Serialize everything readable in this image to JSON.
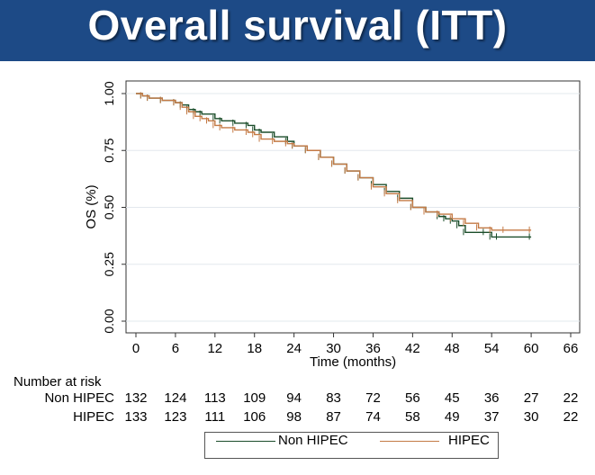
{
  "header": {
    "title": "Overall survival (ITT)",
    "background": "#1d4a86"
  },
  "chart_data": {
    "type": "line",
    "title": "",
    "xlabel": "Time (months)",
    "ylabel": "OS (%)",
    "xlim": [
      0,
      66
    ],
    "ylim": [
      0,
      1
    ],
    "xticks": [
      0,
      6,
      12,
      18,
      24,
      30,
      36,
      42,
      48,
      54,
      60,
      66
    ],
    "yticks": [
      0.0,
      0.25,
      0.5,
      0.75,
      1.0
    ],
    "ytick_labels": [
      "0.00",
      "0.25",
      "0.50",
      "0.75",
      "1.00"
    ],
    "grid": "horizontal",
    "legend_position": "bottom",
    "series": [
      {
        "name": "Non HIPEC",
        "color": "#1b4d2a",
        "step": true,
        "x": [
          0,
          1,
          2,
          4,
          6,
          7,
          8,
          9,
          10,
          12,
          13,
          15,
          17,
          18,
          19,
          21,
          23,
          24,
          26,
          28,
          30,
          32,
          34,
          36,
          38,
          40,
          42,
          44,
          46,
          47,
          48,
          49,
          50,
          53,
          54,
          55,
          60
        ],
        "y": [
          1.0,
          0.99,
          0.98,
          0.97,
          0.96,
          0.95,
          0.93,
          0.92,
          0.91,
          0.89,
          0.88,
          0.87,
          0.86,
          0.84,
          0.83,
          0.81,
          0.79,
          0.77,
          0.75,
          0.72,
          0.69,
          0.66,
          0.63,
          0.6,
          0.57,
          0.54,
          0.5,
          0.48,
          0.46,
          0.45,
          0.44,
          0.42,
          0.39,
          0.39,
          0.37,
          0.37,
          0.37
        ]
      },
      {
        "name": "HIPEC",
        "color": "#c47a45",
        "step": true,
        "x": [
          0,
          1,
          2,
          4,
          6,
          7,
          8,
          9,
          10,
          11,
          12,
          13,
          15,
          17,
          18,
          19,
          21,
          23,
          24,
          26,
          28,
          30,
          32,
          34,
          36,
          38,
          40,
          42,
          44,
          46,
          48,
          50,
          52,
          54,
          56,
          60
        ],
        "y": [
          1.0,
          0.99,
          0.98,
          0.97,
          0.96,
          0.94,
          0.92,
          0.9,
          0.89,
          0.88,
          0.86,
          0.85,
          0.84,
          0.83,
          0.82,
          0.8,
          0.79,
          0.78,
          0.77,
          0.75,
          0.72,
          0.69,
          0.66,
          0.63,
          0.59,
          0.56,
          0.53,
          0.5,
          0.48,
          0.47,
          0.45,
          0.43,
          0.41,
          0.4,
          0.4,
          0.4
        ]
      }
    ]
  },
  "risk_table": {
    "title": "Number at risk",
    "times": [
      0,
      6,
      12,
      18,
      24,
      30,
      36,
      42,
      48,
      54,
      60,
      66
    ],
    "rows": [
      {
        "label": "Non HIPEC",
        "values": [
          "132",
          "124",
          "113",
          "109",
          "94",
          "83",
          "72",
          "56",
          "45",
          "36",
          "27",
          "22"
        ]
      },
      {
        "label": "HIPEC",
        "values": [
          "133",
          "123",
          "111",
          "106",
          "98",
          "87",
          "74",
          "58",
          "49",
          "37",
          "30",
          "22"
        ]
      }
    ]
  }
}
